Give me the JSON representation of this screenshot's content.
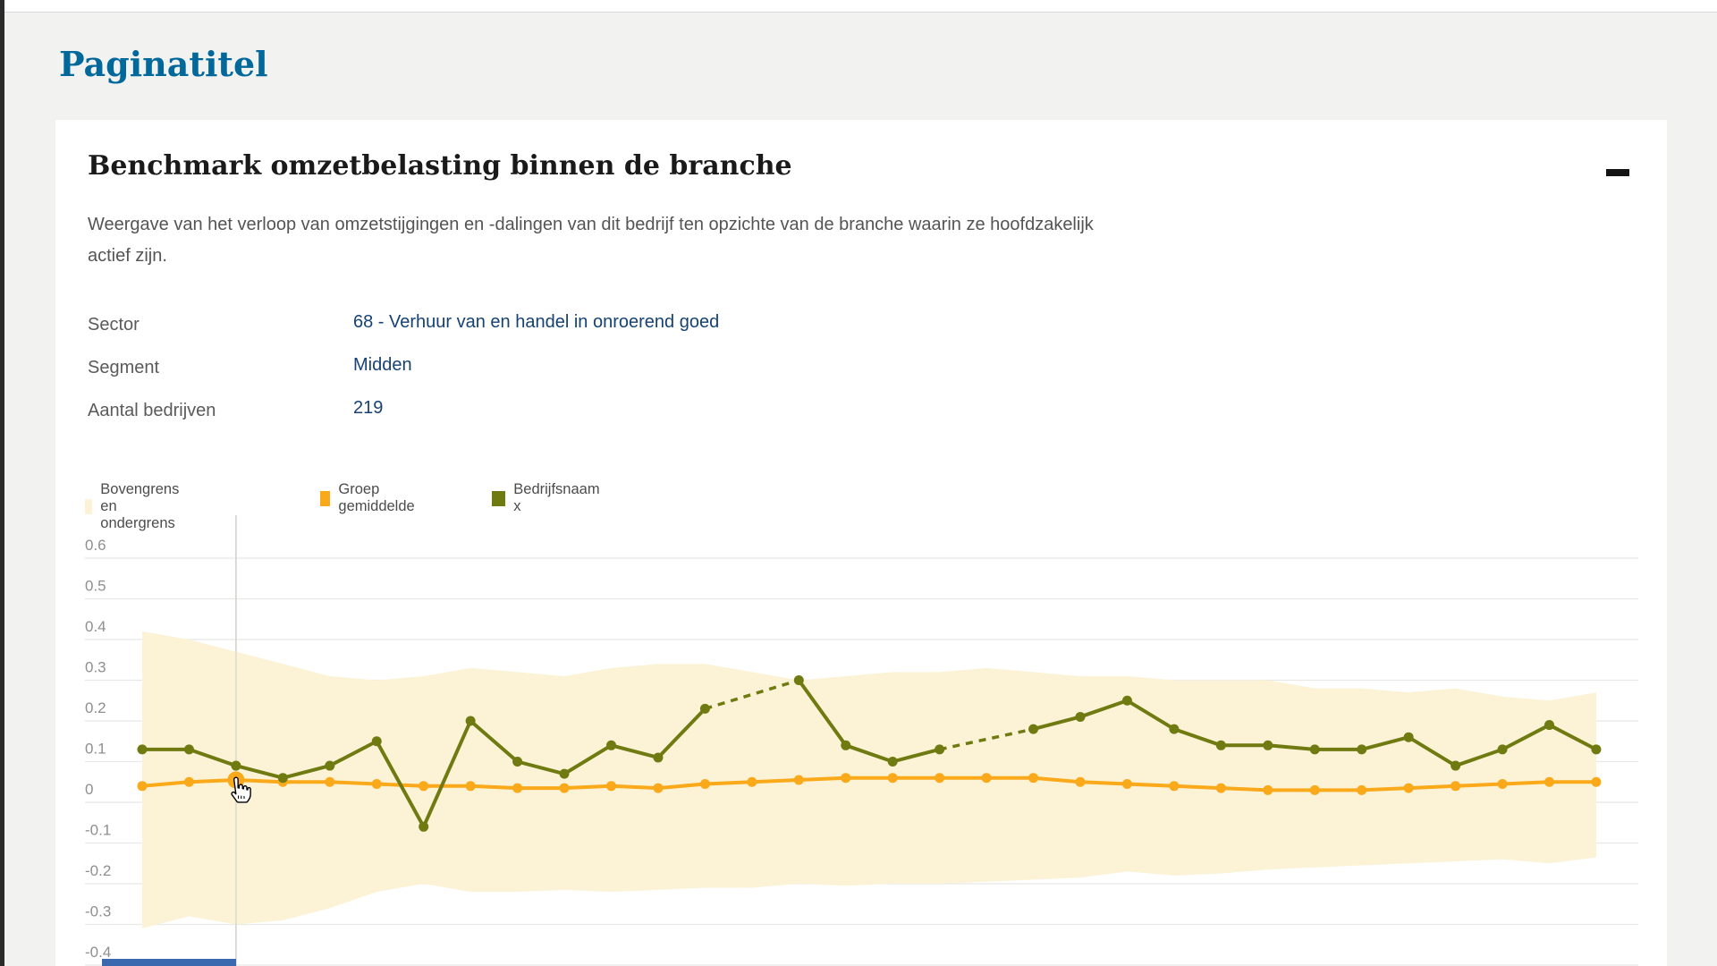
{
  "page": {
    "title": "Paginatitel"
  },
  "panel": {
    "heading": "Benchmark omzetbelasting binnen de branche",
    "collapse_tooltip": "Inklappen",
    "description": "Weergave van het verloop van omzetstijgingen en -dalingen van dit bedrijf ten opzichte van de branche waarin ze hoofdzakelijk actief zijn.",
    "fields": [
      {
        "label": "Sector",
        "value": "68 - Verhuur van en handel in onroerend goed"
      },
      {
        "label": "Segment",
        "value": "Midden"
      },
      {
        "label": "Aantal bedrijven",
        "value": "219"
      }
    ]
  },
  "legend": {
    "items": [
      {
        "label": "Bovengrens en ondergrens",
        "color": "#fcf2d6"
      },
      {
        "label": "Groep gemiddelde",
        "color": "#f9a919"
      },
      {
        "label": "Bedrijfsnaam x",
        "color": "#6f7a11"
      }
    ]
  },
  "chart_data": {
    "type": "line",
    "x_count": 32,
    "x_axis_labels_visible": false,
    "grid": true,
    "legend_position": "top",
    "ylim": [
      -0.4,
      0.6
    ],
    "y_ticks": [
      0.6,
      0.5,
      0.4,
      0.3,
      0.2,
      0.1,
      0,
      -0.1,
      -0.2,
      -0.3,
      -0.4
    ],
    "y_tick_labels": [
      "0.6",
      "0.5",
      "0.4",
      "0.3",
      "0.2",
      "0.1",
      "0",
      "-0.1",
      "-0.2",
      "-0.3",
      "-0.4"
    ],
    "band": {
      "name": "Bovengrens en ondergrens",
      "color": "#fcf2d6",
      "upper": [
        0.42,
        0.4,
        0.37,
        0.34,
        0.31,
        0.3,
        0.31,
        0.33,
        0.32,
        0.31,
        0.33,
        0.34,
        0.34,
        0.32,
        0.3,
        0.31,
        0.32,
        0.32,
        0.33,
        0.32,
        0.31,
        0.31,
        0.3,
        0.3,
        0.3,
        0.28,
        0.28,
        0.27,
        0.28,
        0.26,
        0.25,
        0.27
      ],
      "lower": [
        -0.31,
        -0.28,
        -0.3,
        -0.29,
        -0.26,
        -0.22,
        -0.2,
        -0.22,
        -0.22,
        -0.215,
        -0.22,
        -0.215,
        -0.21,
        -0.21,
        -0.2,
        -0.205,
        -0.2,
        -0.2,
        -0.195,
        -0.19,
        -0.185,
        -0.17,
        -0.18,
        -0.175,
        -0.165,
        -0.16,
        -0.155,
        -0.15,
        -0.145,
        -0.14,
        -0.15,
        -0.135
      ]
    },
    "series": [
      {
        "name": "Groep gemiddelde",
        "color": "#f9a919",
        "style": "solid",
        "values": [
          0.04,
          0.05,
          0.055,
          0.05,
          0.05,
          0.045,
          0.04,
          0.04,
          0.035,
          0.035,
          0.04,
          0.035,
          0.045,
          0.05,
          0.055,
          0.06,
          0.06,
          0.06,
          0.06,
          0.06,
          0.05,
          0.045,
          0.04,
          0.035,
          0.03,
          0.03,
          0.03,
          0.035,
          0.04,
          0.045,
          0.05,
          0.05
        ]
      },
      {
        "name": "Bedrijfsnaam x",
        "color": "#6f7a11",
        "style": "solid_with_dashed_gaps",
        "values": [
          0.13,
          0.13,
          0.09,
          0.06,
          0.09,
          0.15,
          -0.06,
          0.2,
          0.1,
          0.07,
          0.14,
          0.11,
          0.23,
          null,
          0.3,
          0.14,
          0.1,
          0.13,
          null,
          0.18,
          0.21,
          0.25,
          0.18,
          0.14,
          0.14,
          0.13,
          0.13,
          0.16,
          0.09,
          0.13,
          0.19,
          0.13
        ]
      }
    ],
    "hover": {
      "series": "Groep gemiddelde",
      "index": 2,
      "crosshair": true
    }
  },
  "colors": {
    "page_title": "#01689b",
    "field_value": "#154273",
    "grid_line": "#e8e8e4",
    "tick_label": "#8f8f8f",
    "hover_line": "#d5d5d0",
    "bottom_bar": "#3a69af"
  }
}
